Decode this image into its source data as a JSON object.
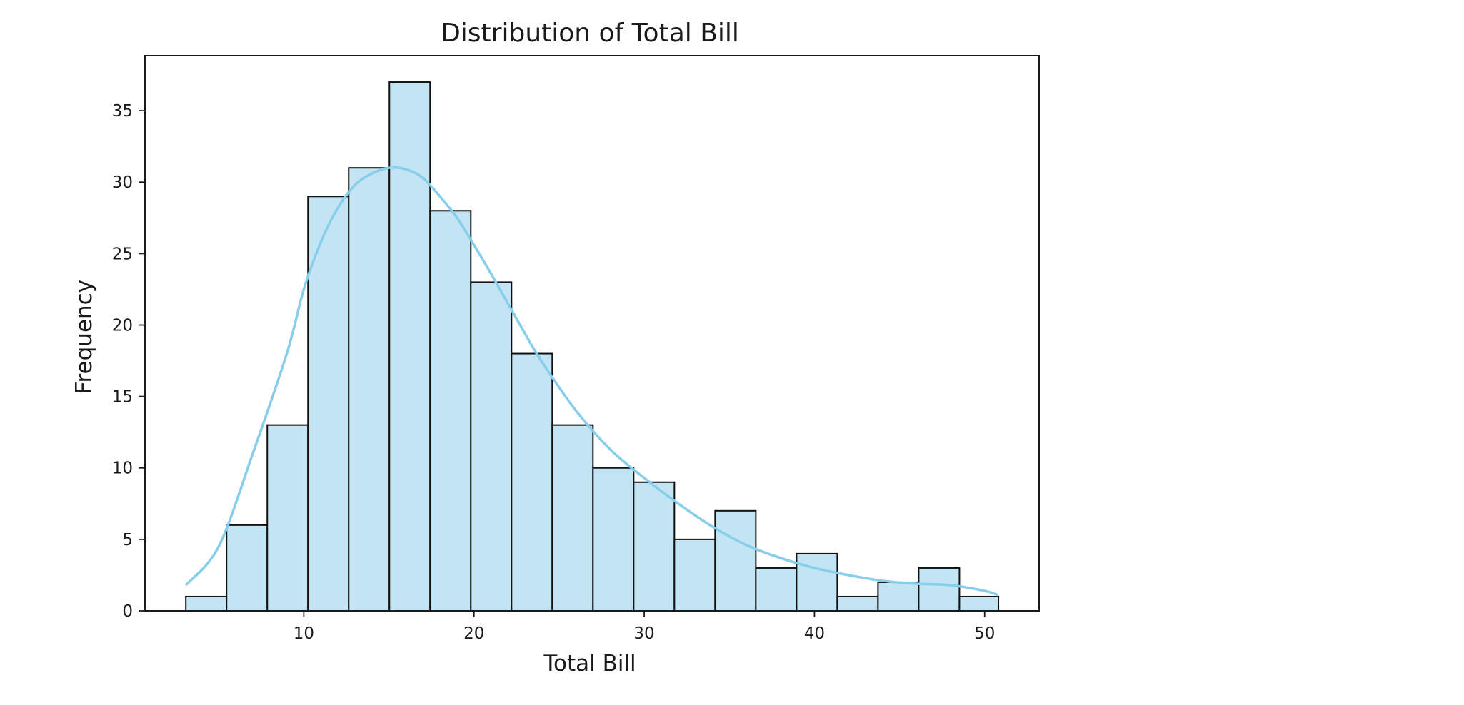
{
  "chart_data": {
    "type": "bar",
    "subtype": "histogram",
    "title": "Distribution of Total Bill",
    "xlabel": "Total Bill",
    "ylabel": "Frequency",
    "bin_edges": [
      3.07,
      5.462,
      7.854,
      10.246,
      12.638,
      15.03,
      17.422,
      19.814,
      22.206,
      24.598,
      26.99,
      29.382,
      31.774,
      34.166,
      36.558,
      38.95,
      41.342,
      43.734,
      46.126,
      48.518,
      50.81
    ],
    "values": [
      1,
      6,
      13,
      29,
      31,
      37,
      28,
      23,
      18,
      13,
      10,
      9,
      5,
      7,
      3,
      4,
      1,
      2,
      3,
      1
    ],
    "kde": {
      "x": [
        3.07,
        5,
        7,
        9,
        10,
        11,
        12,
        13,
        14,
        15,
        16,
        17,
        18,
        19,
        20,
        21,
        22,
        23,
        24,
        26,
        28,
        30,
        32,
        34,
        36,
        38,
        40,
        42,
        44,
        46,
        48,
        50,
        50.81
      ],
      "y": [
        1.8,
        4.5,
        11,
        18,
        22.5,
        25.8,
        28.2,
        29.8,
        30.6,
        31,
        30.9,
        30.3,
        29,
        27.5,
        25.6,
        23.6,
        21.5,
        19.4,
        17.4,
        14,
        11.3,
        9.3,
        7.5,
        5.9,
        4.6,
        3.7,
        3.0,
        2.5,
        2.1,
        1.9,
        1.8,
        1.4,
        1.1
      ]
    },
    "xlim": [
      0.67,
      53.2
    ],
    "ylim": [
      0,
      38.85
    ],
    "xticks": [
      10,
      20,
      30,
      40,
      50
    ],
    "yticks": [
      0,
      5,
      10,
      15,
      20,
      25,
      30,
      35
    ],
    "grid": false,
    "legend": false,
    "colors": {
      "bar_fill": "#c3e4f3",
      "bar_edge": "#111111",
      "kde_line": "#87ceeb",
      "axes": "#1a1a1a"
    }
  }
}
